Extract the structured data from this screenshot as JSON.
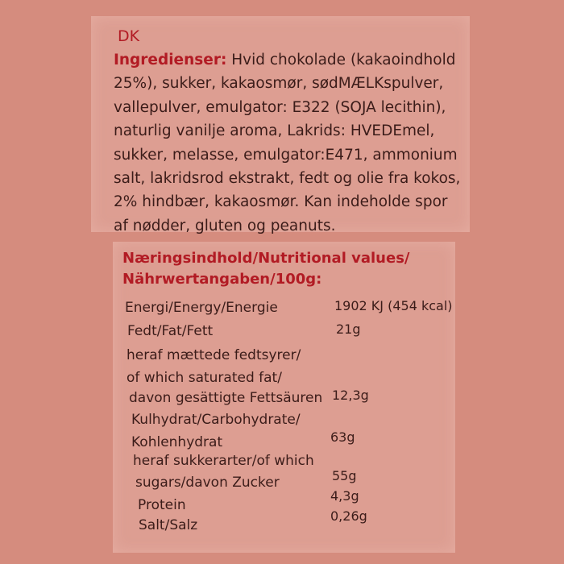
{
  "language_code": "DK",
  "ingredients": {
    "label": "Ingredienser:",
    "lines": [
      "Hvid chokolade (kakaoindhold",
      "25%), sukker, kakaosmør, sødMÆLKspulver,",
      "vallepulver, emulgator: E322 (SOJA lecithin),",
      "naturlig vanilje aroma, Lakrids: HVEDEmel,",
      "sukker, melasse, emulgator:E471, ammonium",
      "salt, lakridsrod ekstrakt, fedt og olie fra kokos,",
      "2% hindbær, kakaosmør. Kan indeholde spor",
      "af nødder, gluten og peanuts."
    ]
  },
  "nutrition": {
    "title_line1": "Næringsindhold/Nutritional values/",
    "title_line2": "Nährwertangaben/100g:",
    "rows": [
      {
        "label": "Energi/Energy/Energie",
        "value": "1902 KJ (454 kcal)"
      },
      {
        "label": "Fedt/Fat/Fett",
        "value": "21g"
      },
      {
        "label": "heraf mættede fedtsyrer/"
      },
      {
        "label": "of which saturated fat/"
      },
      {
        "label": "davon gesättigte Fettsäuren",
        "value": "12,3g"
      },
      {
        "label": "Kulhydrat/Carbohydrate/"
      },
      {
        "label": "Kohlenhydrat",
        "value": "63g"
      },
      {
        "label": "heraf sukkerarter/of which"
      },
      {
        "label": "sugars/davon Zucker",
        "value": "55g"
      },
      {
        "label": "Protein",
        "value": "4,3g"
      },
      {
        "label": "Salt/Salz",
        "value": "0,26g"
      }
    ]
  }
}
